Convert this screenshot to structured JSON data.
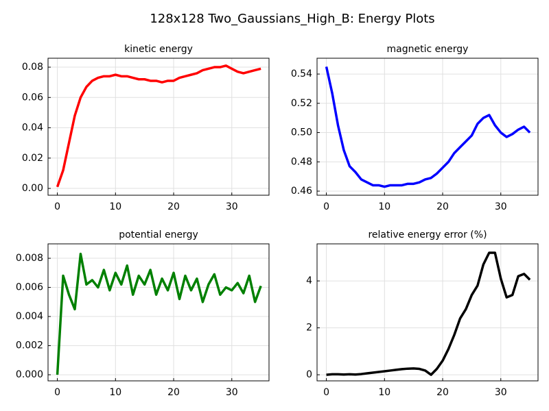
{
  "title": "128x128 Two_Gaussians_High_B: Energy Plots",
  "chart_data": [
    {
      "type": "line",
      "title": "kinetic energy",
      "color": "#ff0000",
      "grid": true,
      "x": [
        0,
        1,
        2,
        3,
        4,
        5,
        6,
        7,
        8,
        9,
        10,
        11,
        12,
        13,
        14,
        15,
        16,
        17,
        18,
        19,
        20,
        21,
        22,
        23,
        24,
        25,
        26,
        27,
        28,
        29,
        30,
        31,
        32,
        33,
        34,
        35
      ],
      "values": [
        0.001,
        0.012,
        0.03,
        0.048,
        0.06,
        0.067,
        0.071,
        0.073,
        0.074,
        0.074,
        0.075,
        0.074,
        0.074,
        0.073,
        0.072,
        0.072,
        0.071,
        0.071,
        0.07,
        0.071,
        0.071,
        0.073,
        0.074,
        0.075,
        0.076,
        0.078,
        0.079,
        0.08,
        0.08,
        0.081,
        0.079,
        0.077,
        0.076,
        0.077,
        0.078,
        0.079
      ],
      "xlim": [
        -1.6,
        36.4
      ],
      "xticks": [
        0,
        10,
        20,
        30
      ],
      "ylim": [
        -0.0045,
        0.0859
      ],
      "yticks": [
        {
          "value": 0,
          "label": "0.00"
        },
        0.02,
        0.04,
        0.06,
        0.08
      ]
    },
    {
      "type": "line",
      "title": "magnetic energy",
      "color": "#0000ff",
      "grid": true,
      "x": [
        0,
        1,
        2,
        3,
        4,
        5,
        6,
        7,
        8,
        9,
        10,
        11,
        12,
        13,
        14,
        15,
        16,
        17,
        18,
        19,
        20,
        21,
        22,
        23,
        24,
        25,
        26,
        27,
        28,
        29,
        30,
        31,
        32,
        33,
        34,
        35
      ],
      "values": [
        0.545,
        0.527,
        0.505,
        0.488,
        0.477,
        0.473,
        0.468,
        0.466,
        0.464,
        0.464,
        0.463,
        0.464,
        0.464,
        0.464,
        0.465,
        0.465,
        0.466,
        0.468,
        0.469,
        0.472,
        0.476,
        0.48,
        0.486,
        0.49,
        0.494,
        0.498,
        0.506,
        0.51,
        0.512,
        0.505,
        0.5,
        0.497,
        0.499,
        0.502,
        0.504,
        0.5
      ],
      "xlim": [
        -1.6,
        36.4
      ],
      "xticks": [
        0,
        10,
        20,
        30
      ],
      "ylim": [
        0.4572,
        0.5508
      ],
      "yticks": [
        0.46,
        0.48,
        {
          "value": 0.5,
          "label": "0.50"
        },
        0.52,
        0.54
      ]
    },
    {
      "type": "line",
      "title": "potential energy",
      "color": "#008000",
      "grid": true,
      "x": [
        0,
        1,
        2,
        3,
        4,
        5,
        6,
        7,
        8,
        9,
        10,
        11,
        12,
        13,
        14,
        15,
        16,
        17,
        18,
        19,
        20,
        21,
        22,
        23,
        24,
        25,
        26,
        27,
        28,
        29,
        30,
        31,
        32,
        33,
        34,
        35
      ],
      "values": [
        0.0,
        0.0068,
        0.0055,
        0.0045,
        0.0083,
        0.0062,
        0.0065,
        0.006,
        0.0072,
        0.0058,
        0.007,
        0.0062,
        0.0075,
        0.0055,
        0.0068,
        0.0062,
        0.0072,
        0.0055,
        0.0066,
        0.0058,
        0.007,
        0.0052,
        0.0068,
        0.0058,
        0.0066,
        0.005,
        0.0062,
        0.0069,
        0.0055,
        0.006,
        0.0058,
        0.0063,
        0.0056,
        0.0068,
        0.005,
        0.0061
      ],
      "xlim": [
        -1.6,
        36.4
      ],
      "xticks": [
        0,
        10,
        20,
        30
      ],
      "ylim": [
        -0.00042,
        0.00899
      ],
      "yticks": [
        {
          "value": 0,
          "label": "0.000"
        },
        0.002,
        0.004,
        0.006,
        0.008
      ]
    },
    {
      "type": "line",
      "title": "relative energy error (%)",
      "color": "#000000",
      "grid": true,
      "x": [
        0,
        1,
        2,
        3,
        4,
        5,
        6,
        7,
        8,
        9,
        10,
        11,
        12,
        13,
        14,
        15,
        16,
        17,
        18,
        19,
        20,
        21,
        22,
        23,
        24,
        25,
        26,
        27,
        28,
        29,
        30,
        31,
        32,
        33,
        34,
        35
      ],
      "values": [
        0,
        0.02,
        0.02,
        0.01,
        0.02,
        0.01,
        0.03,
        0.06,
        0.09,
        0.12,
        0.15,
        0.18,
        0.21,
        0.24,
        0.26,
        0.27,
        0.25,
        0.18,
        0.0,
        0.25,
        0.6,
        1.1,
        1.7,
        2.4,
        2.8,
        3.4,
        3.8,
        4.7,
        5.2,
        5.2,
        4.1,
        3.3,
        3.4,
        4.2,
        4.3,
        4.05
      ],
      "xlim": [
        -1.6,
        36.4
      ],
      "xticks": [
        0,
        10,
        20,
        30
      ],
      "ylim": [
        -0.26,
        5.58
      ],
      "yticks": [
        0,
        2,
        4
      ]
    }
  ]
}
